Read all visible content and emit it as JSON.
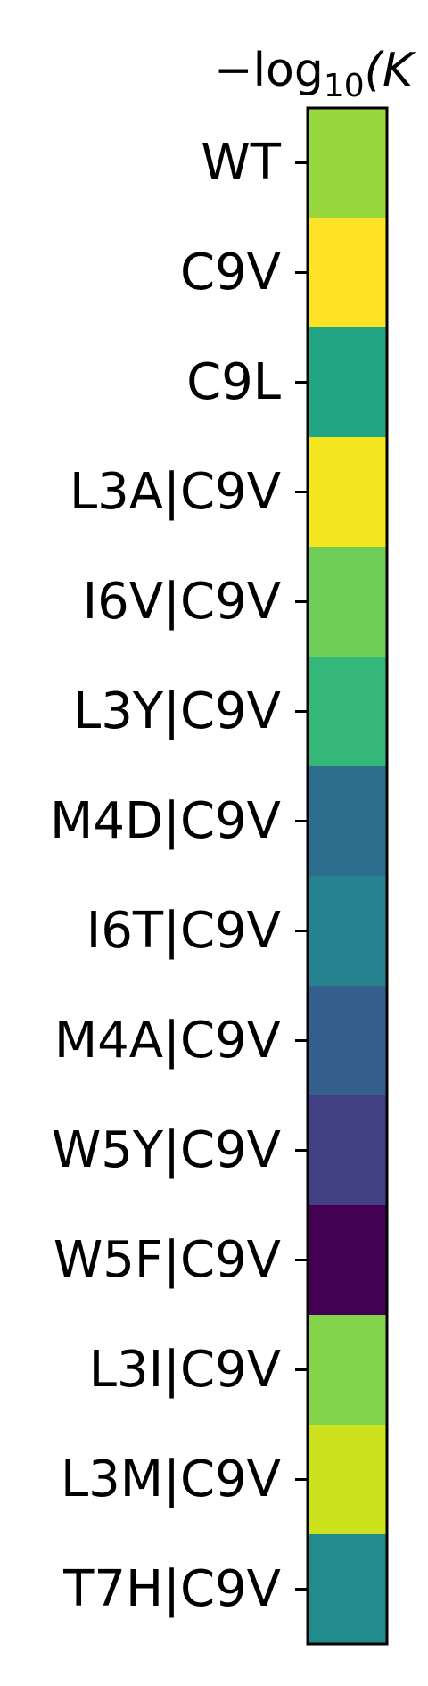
{
  "chart_data": {
    "type": "heatmap",
    "title_parts": {
      "prefix": "−log",
      "subscript": "10",
      "suffix": "(K"
    },
    "rows": [
      "WT",
      "C9V",
      "C9L",
      "L3A|C9V",
      "I6V|C9V",
      "L3Y|C9V",
      "M4D|C9V",
      "I6T|C9V",
      "M4A|C9V",
      "W5Y|C9V",
      "W5F|C9V",
      "L3I|C9V",
      "L3M|C9V",
      "T7H|C9V"
    ],
    "values": [
      0.78,
      0.98,
      0.55,
      0.96,
      0.72,
      0.62,
      0.3,
      0.4,
      0.25,
      0.16,
      0.0,
      0.76,
      0.9,
      0.45
    ],
    "value_range": [
      0,
      1
    ],
    "colormap": "viridis",
    "cell_colors": [
      "#98d83e",
      "#fde225",
      "#21a585",
      "#f4e61e",
      "#6ece58",
      "#35b779",
      "#2d6e8e",
      "#26828e",
      "#355f8d",
      "#424186",
      "#440154",
      "#84d44b",
      "#cde11d",
      "#228b8d"
    ]
  }
}
